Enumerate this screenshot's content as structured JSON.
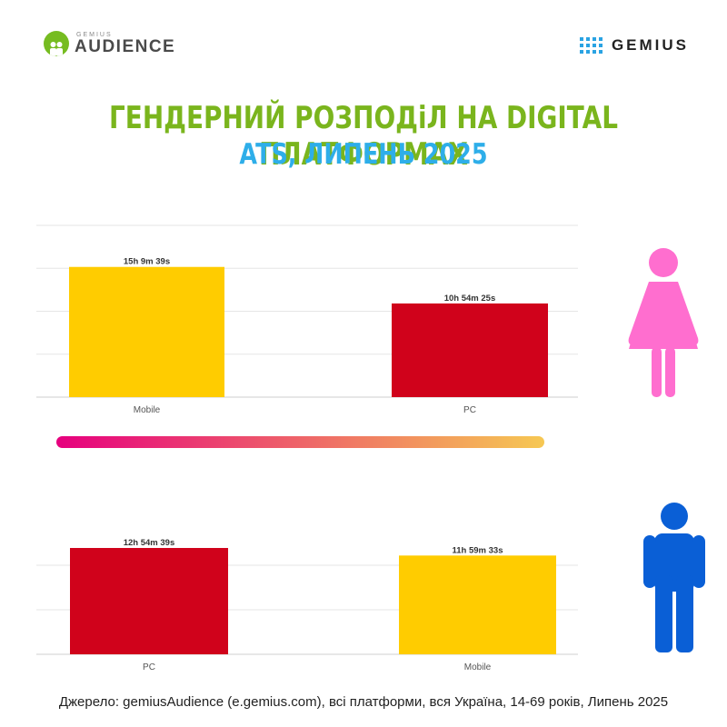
{
  "header": {
    "audience_logo_small": "GEMIUS",
    "audience_logo_big": "AUDIENCE",
    "gemius_logo": "GEMIUS"
  },
  "title": {
    "line1": "ГЕНДЕРНИЙ РОЗПОДіЛ НА DIGITAL ПЛАТФОРМАХ",
    "line2": "ATS, ЛИПЕНЬ 2025"
  },
  "colors": {
    "title1": "#7ab51d",
    "title2": "#2eaee9",
    "mobile": "#ffcc00",
    "pc": "#d0021b",
    "female": "#ff6ecf",
    "male": "#0a5fd6",
    "logo_green": "#76bc21",
    "gradient_start": "#e6007e",
    "gradient_end": "#f6c853"
  },
  "icons": {
    "female": "female-figure-icon",
    "male": "male-figure-icon"
  },
  "chart_data": [
    {
      "type": "bar",
      "group": "female",
      "categories": [
        "Mobile",
        "PC"
      ],
      "values": [
        15.1608,
        10.9069
      ],
      "labels": [
        "15h 9m 39s",
        "10h 54m 25s"
      ],
      "ylim": [
        0,
        20
      ],
      "grid": true
    },
    {
      "type": "bar",
      "group": "male",
      "categories": [
        "PC",
        "Mobile"
      ],
      "values": [
        12.9108,
        11.9925
      ],
      "labels": [
        "12h 54m 39s",
        "11h 59m 33s"
      ],
      "ylim": [
        0,
        16
      ],
      "grid": true
    }
  ],
  "source": "Джерело: gemiusAudience (e.gemius.com), всі платформи, вся Україна, 14-69 років, Липень 2025"
}
